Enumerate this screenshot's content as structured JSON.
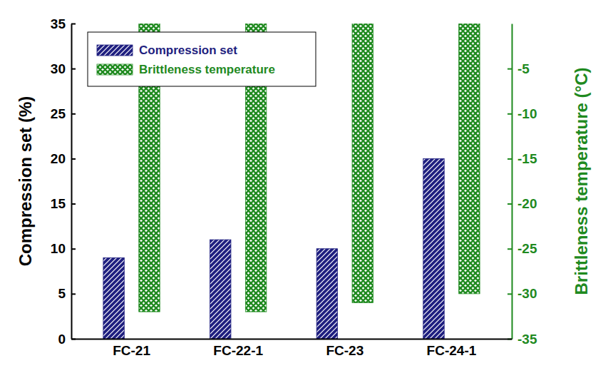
{
  "chart_data": {
    "type": "bar",
    "categories": [
      "FC-21",
      "FC-22-1",
      "FC-23",
      "FC-24-1"
    ],
    "series": [
      {
        "name": "Compression set",
        "color": "#1f1f80",
        "values": [
          9,
          11,
          10,
          20
        ]
      },
      {
        "name": "Brittleness temperature",
        "color": "#1f8a1f",
        "values": [
          -32,
          -32,
          -31,
          -30
        ],
        "axis": "y2"
      }
    ],
    "y_label": "Compression set (%)",
    "y2_label": "Brittleness temperature (°C)",
    "ylim": [
      0,
      35
    ],
    "yticks": [
      0,
      5,
      10,
      15,
      20,
      25,
      30,
      35
    ],
    "y2lim": [
      -35,
      0
    ],
    "y2ticks": [
      -35,
      -30,
      -25,
      -20,
      -15,
      -10,
      -5
    ],
    "legend": "upper left"
  }
}
